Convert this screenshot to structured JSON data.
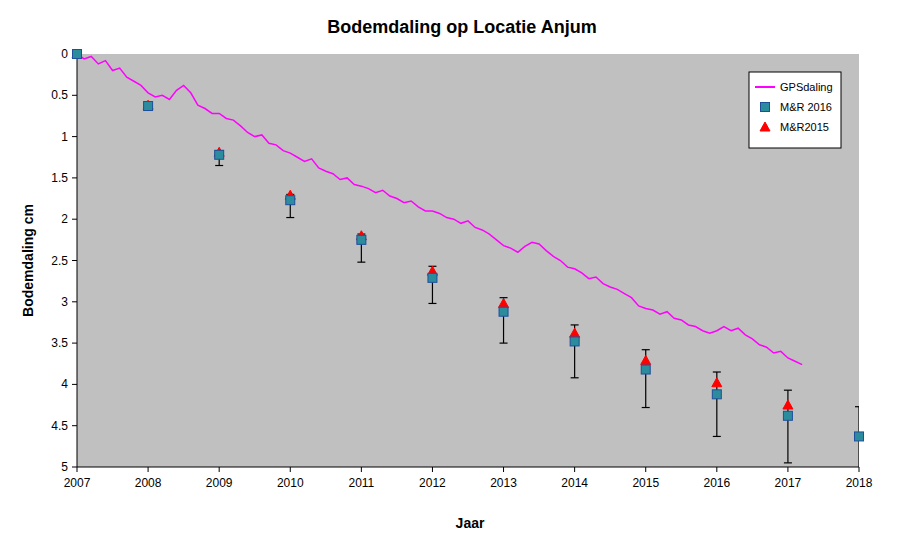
{
  "chart_data": {
    "type": "line",
    "title": "Bodemdaling op Locatie Anjum",
    "x_label": "Jaar",
    "y_label": "Bodemdaling cm",
    "xlim": [
      2007,
      2018
    ],
    "xticks": [
      2007,
      2008,
      2009,
      2010,
      2011,
      2012,
      2013,
      2014,
      2015,
      2016,
      2017,
      2018
    ],
    "ylim": [
      0,
      5
    ],
    "yticks": [
      0,
      0.5,
      1,
      1.5,
      2,
      2.5,
      3,
      3.5,
      4,
      4.5,
      5
    ],
    "grid": false,
    "legend": "upper right",
    "series": [
      {
        "name": "GPSdaling",
        "type": "line",
        "color": "#ff00ff",
        "line_style": "solid",
        "x": [
          2007.0,
          2007.1,
          2007.2,
          2007.3,
          2007.4,
          2007.5,
          2007.6,
          2007.7,
          2007.8,
          2007.9,
          2008.0,
          2008.1,
          2008.2,
          2008.3,
          2008.4,
          2008.5,
          2008.6,
          2008.7,
          2008.8,
          2008.9,
          2009.0,
          2009.1,
          2009.2,
          2009.3,
          2009.4,
          2009.5,
          2009.6,
          2009.7,
          2009.8,
          2009.9,
          2010.0,
          2010.1,
          2010.2,
          2010.3,
          2010.4,
          2010.5,
          2010.6,
          2010.7,
          2010.8,
          2010.9,
          2011.0,
          2011.1,
          2011.2,
          2011.3,
          2011.4,
          2011.5,
          2011.6,
          2011.7,
          2011.8,
          2011.9,
          2012.0,
          2012.1,
          2012.2,
          2012.3,
          2012.4,
          2012.5,
          2012.6,
          2012.7,
          2012.8,
          2012.9,
          2013.0,
          2013.1,
          2013.2,
          2013.3,
          2013.4,
          2013.5,
          2013.6,
          2013.7,
          2013.8,
          2013.9,
          2014.0,
          2014.1,
          2014.2,
          2014.3,
          2014.4,
          2014.5,
          2014.6,
          2014.7,
          2014.8,
          2014.9,
          2015.0,
          2015.1,
          2015.2,
          2015.3,
          2015.4,
          2015.5,
          2015.6,
          2015.7,
          2015.8,
          2015.9,
          2016.0,
          2016.1,
          2016.2,
          2016.3,
          2016.4,
          2016.5,
          2016.6,
          2016.7,
          2016.8,
          2016.9,
          2017.0,
          2017.1,
          2017.2
        ],
        "values": [
          0,
          0.06,
          0.03,
          0.12,
          0.08,
          0.2,
          0.17,
          0.28,
          0.33,
          0.38,
          0.47,
          0.52,
          0.5,
          0.55,
          0.44,
          0.38,
          0.47,
          0.62,
          0.66,
          0.72,
          0.72,
          0.78,
          0.8,
          0.87,
          0.95,
          1.0,
          0.98,
          1.08,
          1.1,
          1.17,
          1.2,
          1.25,
          1.3,
          1.27,
          1.38,
          1.42,
          1.45,
          1.52,
          1.5,
          1.58,
          1.6,
          1.63,
          1.68,
          1.65,
          1.72,
          1.75,
          1.8,
          1.78,
          1.85,
          1.9,
          1.9,
          1.93,
          1.98,
          2.0,
          2.05,
          2.02,
          2.1,
          2.13,
          2.18,
          2.25,
          2.32,
          2.35,
          2.4,
          2.33,
          2.28,
          2.3,
          2.38,
          2.45,
          2.5,
          2.58,
          2.6,
          2.65,
          2.72,
          2.7,
          2.78,
          2.82,
          2.85,
          2.9,
          2.95,
          3.05,
          3.08,
          3.1,
          3.15,
          3.12,
          3.2,
          3.22,
          3.28,
          3.3,
          3.35,
          3.38,
          3.35,
          3.3,
          3.35,
          3.32,
          3.4,
          3.45,
          3.52,
          3.55,
          3.62,
          3.6,
          3.68,
          3.72,
          3.76
        ]
      },
      {
        "name": "M&R 2016",
        "type": "scatter",
        "color": "#2b8c9e",
        "marker": "square",
        "x": [
          2007,
          2008,
          2009,
          2010,
          2011,
          2012,
          2013,
          2014,
          2015,
          2016,
          2017,
          2018
        ],
        "values": [
          0,
          0.63,
          1.22,
          1.77,
          2.25,
          2.71,
          3.12,
          3.48,
          3.82,
          4.12,
          4.38,
          4.63
        ],
        "errors_minus": [
          0,
          0.03,
          0.05,
          0.07,
          0.07,
          0.14,
          0.17,
          0.2,
          0.24,
          0.27,
          0.31,
          0.36
        ],
        "errors_plus": [
          0,
          0.05,
          0.13,
          0.21,
          0.27,
          0.31,
          0.38,
          0.44,
          0.46,
          0.51,
          0.57,
          0.45
        ]
      },
      {
        "name": "M&R2015",
        "type": "scatter",
        "color": "#ff0000",
        "marker": "triangle",
        "x": [
          2007,
          2008,
          2009,
          2010,
          2011,
          2012,
          2013,
          2014,
          2015,
          2016,
          2017
        ],
        "values": [
          0,
          0.62,
          1.19,
          1.71,
          2.2,
          2.63,
          3.02,
          3.38,
          3.71,
          3.98,
          4.25
        ]
      }
    ]
  }
}
